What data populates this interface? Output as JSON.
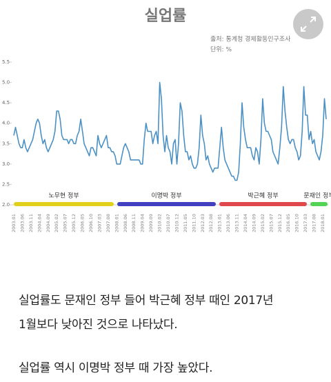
{
  "chart_data": {
    "type": "line",
    "title": "실업률",
    "source": "출처: 통계청 경제활동인구조사",
    "unit": "단위: %",
    "categories": [
      "2003.01",
      null,
      null,
      null,
      null,
      "2003.06",
      null,
      null,
      null,
      null,
      "2003.11",
      null,
      null,
      null,
      null,
      "2004.04",
      null,
      null,
      null,
      null,
      "2004.09",
      null,
      null,
      null,
      null,
      "2005.02",
      null,
      null,
      null,
      null,
      "2005.07",
      null,
      null,
      null,
      null,
      "2005.12",
      null,
      null,
      null,
      null,
      "2006.05",
      null,
      null,
      null,
      null,
      "2006.10",
      null,
      null,
      null,
      null,
      "2007.03",
      null,
      null,
      null,
      null,
      "2007.08",
      null,
      null,
      null,
      null,
      "2008.01",
      null,
      null,
      null,
      null,
      "2008.06",
      null,
      null,
      null,
      null,
      "2008.11",
      null,
      null,
      null,
      null,
      "2009.04",
      null,
      null,
      null,
      null,
      "2009.09",
      null,
      null,
      null,
      null,
      "2010.02",
      null,
      null,
      null,
      null,
      "2010.07",
      null,
      null,
      null,
      null,
      "2010.12",
      null,
      null,
      null,
      null,
      "2011.05",
      null,
      null,
      null,
      null,
      "2011.10",
      null,
      null,
      null,
      null,
      "2012.03",
      null,
      null,
      null,
      null,
      "2012.08",
      null,
      null,
      null,
      null,
      "2013.01",
      null,
      null,
      null,
      null,
      "2013.06",
      null,
      null,
      null,
      null,
      "2013.11",
      null,
      null,
      null,
      null,
      "2014.04",
      null,
      null,
      null,
      null,
      "2014.09",
      null,
      null,
      null,
      null,
      "2015.02",
      null,
      null,
      null,
      null,
      "2015.07",
      null,
      null,
      null,
      null,
      "2015.12",
      null,
      null,
      null,
      null,
      "2016.05",
      null,
      null,
      null,
      null,
      "2016.10",
      null,
      null,
      null,
      null,
      "2017.03",
      null,
      null,
      null,
      null,
      "2017.08",
      null,
      null,
      null,
      null,
      "2018.01",
      null,
      null
    ],
    "series": [
      {
        "color": "#4a90c4",
        "values": [
          3.7,
          3.9,
          3.7,
          3.5,
          3.4,
          3.4,
          3.6,
          3.4,
          3.3,
          3.4,
          3.5,
          3.6,
          3.8,
          4.0,
          4.1,
          4.0,
          3.7,
          3.5,
          3.6,
          3.4,
          3.3,
          3.4,
          3.5,
          3.6,
          3.8,
          4.3,
          4.3,
          4.1,
          3.7,
          3.6,
          3.6,
          3.6,
          3.5,
          3.6,
          3.6,
          3.5,
          3.5,
          3.7,
          3.8,
          4.1,
          3.8,
          3.5,
          3.4,
          3.3,
          3.2,
          3.4,
          3.4,
          3.3,
          3.2,
          3.7,
          3.5,
          3.4,
          3.5,
          3.6,
          3.7,
          3.4,
          3.4,
          3.3,
          3.3,
          3.2,
          3.0,
          3.0,
          3.0,
          3.2,
          3.4,
          3.5,
          3.4,
          3.3,
          3.1,
          3.1,
          3.1,
          3.1,
          3.1,
          3.1,
          3.0,
          3.0,
          3.6,
          4.0,
          3.8,
          3.8,
          3.8,
          3.5,
          3.7,
          3.8,
          3.5,
          5.0,
          4.6,
          3.7,
          3.3,
          3.7,
          3.4,
          3.3,
          3.0,
          3.5,
          3.6,
          3.0,
          3.5,
          4.5,
          4.3,
          3.7,
          3.3,
          3.3,
          3.1,
          3.2,
          3.0,
          2.9,
          2.9,
          3.0,
          3.4,
          4.2,
          3.7,
          3.5,
          3.1,
          3.2,
          3.0,
          2.9,
          2.8,
          2.9,
          2.9,
          2.9,
          3.4,
          3.9,
          3.4,
          3.1,
          3.0,
          2.9,
          2.8,
          2.7,
          2.7,
          2.6,
          2.6,
          2.8,
          3.5,
          4.5,
          3.9,
          3.6,
          3.4,
          3.4,
          3.4,
          3.2,
          3.1,
          3.4,
          3.3,
          3.0,
          3.6,
          4.6,
          4.0,
          3.8,
          3.8,
          3.7,
          3.6,
          3.3,
          3.2,
          3.1,
          3.0,
          3.4,
          3.9,
          4.9,
          4.3,
          3.9,
          3.6,
          3.5,
          3.6,
          3.6,
          3.4,
          3.3,
          3.1,
          3.2,
          3.8,
          4.9,
          4.2,
          4.2,
          3.6,
          3.8,
          3.5,
          3.6,
          3.3,
          3.2,
          3.1,
          3.3,
          3.7,
          4.6,
          4.1
        ]
      }
    ],
    "ylim": [
      2,
      5.5
    ],
    "yticks": [
      {
        "value": 2,
        "label": "2.0"
      },
      {
        "value": 2.5,
        "label": "2.5"
      },
      {
        "value": 3,
        "label": "3.0"
      },
      {
        "value": 3.5,
        "label": "3.5"
      },
      {
        "value": 4,
        "label": "4.0"
      },
      {
        "value": 4.5,
        "label": "4.5"
      },
      {
        "value": 5,
        "label": "5.0"
      },
      {
        "value": 5.5,
        "label": "5.5"
      }
    ],
    "periods": [
      {
        "label": "노무현 정부",
        "color": "#e2d11c"
      },
      {
        "label": "이명박 정부",
        "color": "#4040c0"
      },
      {
        "label": "박근혜 정부",
        "color": "#e0474b"
      },
      {
        "label": "문재인 정부",
        "color": "#52d452"
      }
    ]
  },
  "article": {
    "paragraphs": [
      "실업률도 문재인 정부 들어 박근혜 정부 때인 2017년",
      "1월보다 낮아진 것으로 나타났다.",
      "실업률 역시 이명박 정부 때 가장 높았다."
    ]
  }
}
